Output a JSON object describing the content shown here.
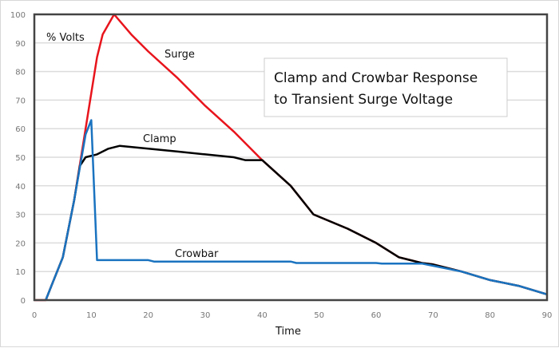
{
  "chart_data": {
    "type": "line",
    "title": [
      "Clamp and Crowbar Response",
      "to Transient Surge Voltage"
    ],
    "xlabel": "Time",
    "ylabel": "% Volts",
    "xlim": [
      0,
      90
    ],
    "ylim": [
      0,
      100
    ],
    "xticks": [
      0,
      10,
      20,
      30,
      40,
      50,
      60,
      70,
      80,
      90
    ],
    "yticks": [
      0,
      10,
      20,
      30,
      40,
      50,
      60,
      70,
      80,
      90,
      100
    ],
    "grid": "horizontal",
    "series": [
      {
        "name": "Surge",
        "color": "#e8141c",
        "points": [
          [
            0,
            0
          ],
          [
            2,
            0
          ],
          [
            3,
            5
          ],
          [
            5,
            15
          ],
          [
            7,
            35
          ],
          [
            9,
            60
          ],
          [
            11,
            85
          ],
          [
            12,
            93
          ],
          [
            14,
            100
          ],
          [
            17,
            93
          ],
          [
            20,
            87
          ],
          [
            25,
            78
          ],
          [
            30,
            68
          ],
          [
            35,
            59
          ],
          [
            40,
            49
          ],
          [
            45,
            40
          ],
          [
            49,
            30
          ],
          [
            55,
            25
          ],
          [
            60,
            20
          ],
          [
            64,
            15
          ],
          [
            68,
            13
          ],
          [
            70,
            12.5
          ],
          [
            75,
            10
          ],
          [
            80,
            7
          ],
          [
            85,
            5
          ],
          [
            90,
            2
          ]
        ]
      },
      {
        "name": "Clamp",
        "color": "#000000",
        "points": [
          [
            2,
            0
          ],
          [
            3,
            5
          ],
          [
            5,
            15
          ],
          [
            7,
            35
          ],
          [
            8,
            47
          ],
          [
            9,
            50
          ],
          [
            11,
            51
          ],
          [
            13,
            53
          ],
          [
            15,
            54
          ],
          [
            20,
            53
          ],
          [
            25,
            52
          ],
          [
            30,
            51
          ],
          [
            35,
            50
          ],
          [
            37,
            49
          ],
          [
            40,
            49
          ],
          [
            45,
            40
          ],
          [
            49,
            30
          ],
          [
            55,
            25
          ],
          [
            60,
            20
          ],
          [
            64,
            15
          ],
          [
            68,
            13
          ],
          [
            70,
            12.5
          ],
          [
            75,
            10
          ],
          [
            80,
            7
          ],
          [
            85,
            5
          ],
          [
            90,
            2
          ]
        ]
      },
      {
        "name": "Crowbar",
        "color": "#1a73c0",
        "points": [
          [
            2,
            0
          ],
          [
            3,
            5
          ],
          [
            5,
            15
          ],
          [
            7,
            35
          ],
          [
            9,
            58
          ],
          [
            10,
            63
          ],
          [
            11,
            14
          ],
          [
            20,
            14
          ],
          [
            21,
            13.5
          ],
          [
            45,
            13.5
          ],
          [
            46,
            13
          ],
          [
            60,
            13
          ],
          [
            61,
            12.8
          ],
          [
            68,
            12.8
          ],
          [
            70,
            12
          ],
          [
            75,
            10
          ],
          [
            80,
            7
          ],
          [
            85,
            5
          ],
          [
            90,
            2
          ]
        ]
      }
    ]
  }
}
